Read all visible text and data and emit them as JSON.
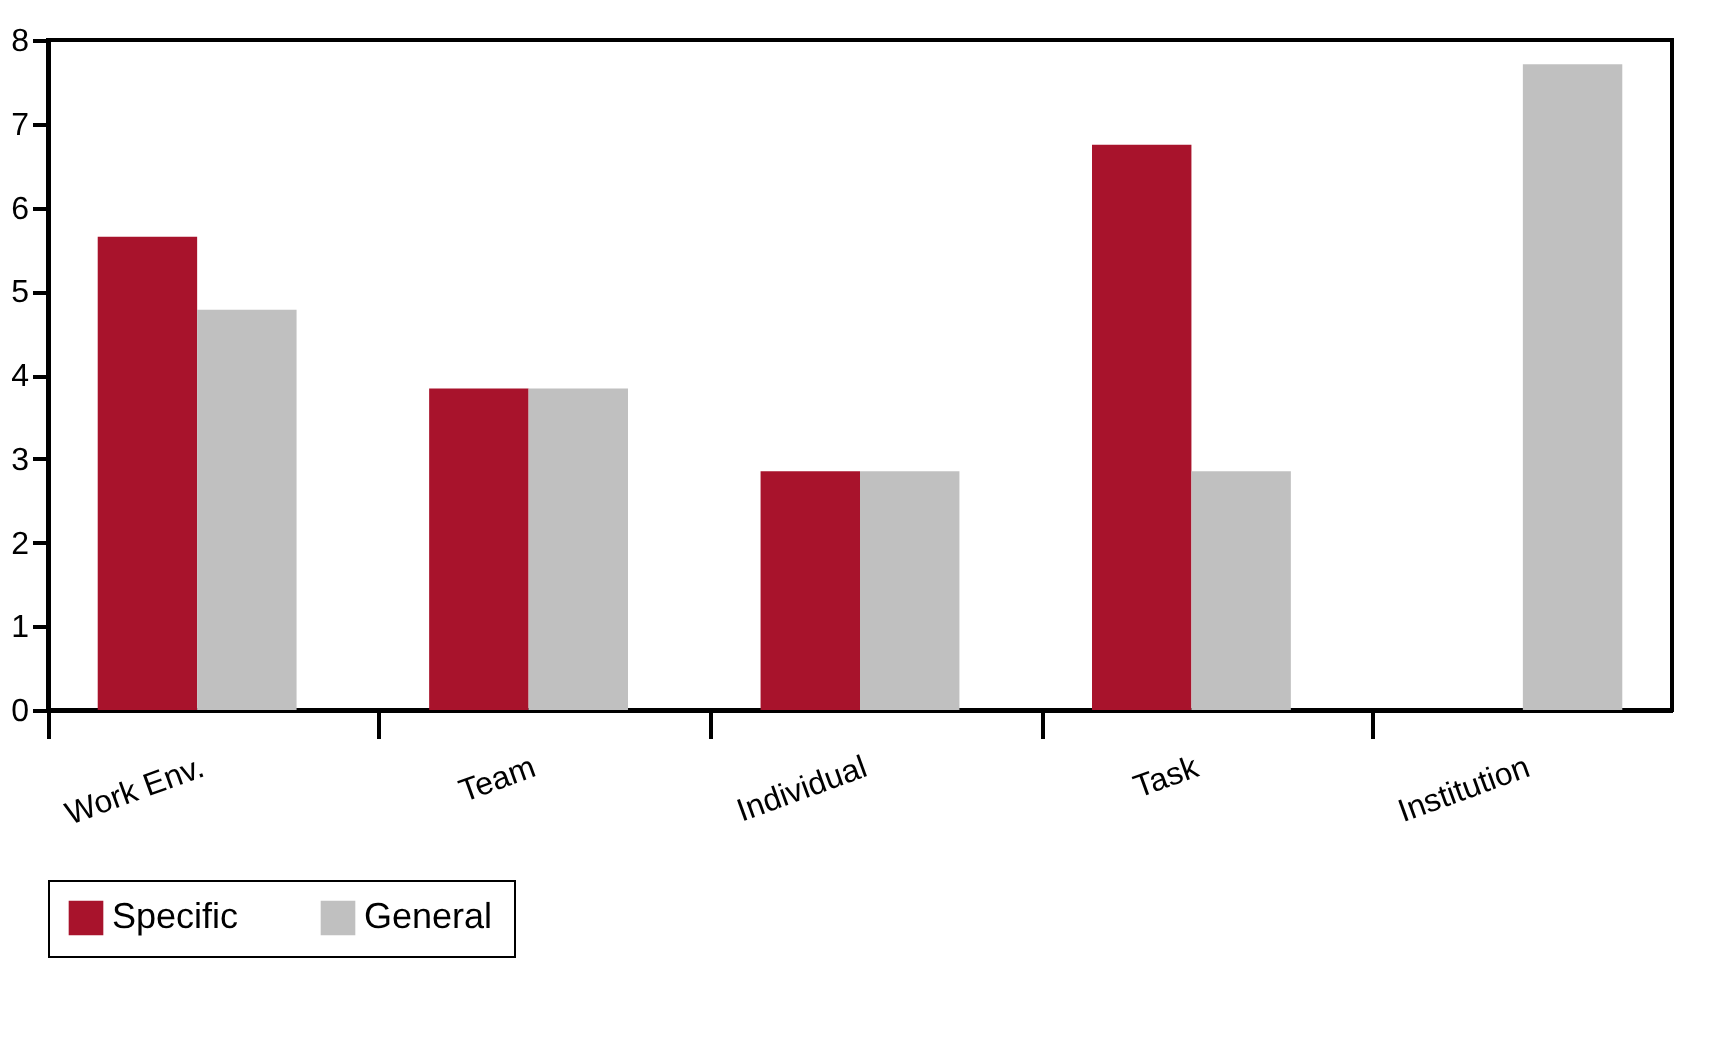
{
  "chart_data": {
    "type": "bar",
    "categories": [
      "Work Env.",
      "Team",
      "Individual",
      "Task",
      "Institution"
    ],
    "series": [
      {
        "name": "Specific",
        "color": "#a8132c",
        "values": [
          5.65,
          3.84,
          2.85,
          6.75,
          null
        ]
      },
      {
        "name": "General",
        "color": "#c0c0c0",
        "values": [
          4.78,
          3.84,
          2.85,
          2.85,
          7.71
        ]
      }
    ],
    "ylim": [
      0,
      8
    ],
    "yticks": [
      0,
      1,
      2,
      3,
      4,
      5,
      6,
      7,
      8
    ],
    "grid": false,
    "legend": "bottom"
  }
}
